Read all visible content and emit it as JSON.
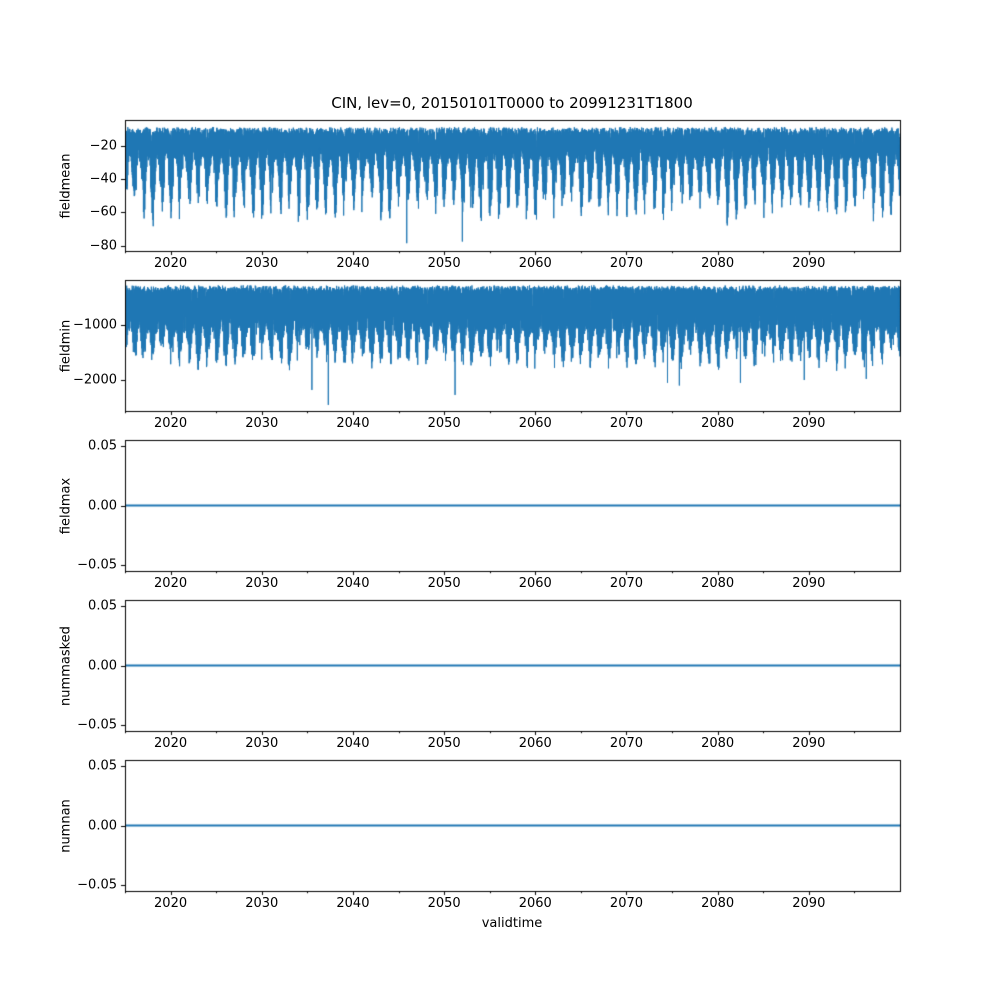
{
  "chart_data": {
    "type": "line",
    "title": "CIN, lev=0, 20150101T0000 to 20991231T1800",
    "xlabel": "validtime",
    "line_color": "#1f77b4",
    "background_color": "#ffffff",
    "axis_color": "#000000",
    "grid": false,
    "legend": false,
    "x_range": [
      2015,
      2100
    ],
    "x_ticks": {
      "major_values": [
        2020,
        2030,
        2040,
        2050,
        2060,
        2070,
        2080,
        2090
      ],
      "major_labels": [
        "2020",
        "2030",
        "2040",
        "2050",
        "2060",
        "2070",
        "2080",
        "2090"
      ],
      "minor_values": [
        2015,
        2025,
        2035,
        2045,
        2055,
        2065,
        2075,
        2085,
        2095
      ]
    },
    "subplots": [
      {
        "ylabel": "fieldmean",
        "ylim": [
          -83.2,
          -4.3
        ],
        "yticks": [
          {
            "value": -20,
            "label": "−20"
          },
          {
            "value": -40,
            "label": "−40"
          },
          {
            "value": -60,
            "label": "−60"
          },
          {
            "value": -80,
            "label": "−80"
          }
        ],
        "series": {
          "kind": "seasonal-noise",
          "description": "6-hourly CIN field mean, annual cycle: peaks near -9, seasonal dips to -45..-68",
          "seed": 7,
          "top": -8.5,
          "top_jitter": 4,
          "base_depth": 17,
          "seasonal_depth": 36,
          "sharpness": 1.3,
          "phase": 0.45,
          "year_factor_min": 0.7,
          "year_factor_max": 1.15,
          "spikes": [
            {
              "x": 2045.9,
              "y": -78.5
            },
            {
              "x": 2052.0,
              "y": -77.5
            }
          ]
        }
      },
      {
        "ylabel": "fieldmin",
        "ylim": [
          -2560,
          -195
        ],
        "yticks": [
          {
            "value": -1000,
            "label": "−1000"
          },
          {
            "value": -2000,
            "label": "−2000"
          }
        ],
        "series": {
          "kind": "seasonal-noise",
          "description": "6-hourly CIN field minimum, annual cycle: peaks near -300, seasonal dips to -1400..-2000",
          "seed": 21,
          "top": -290,
          "top_jitter": 90,
          "base_depth": 780,
          "seasonal_depth": 620,
          "sharpness": 1.1,
          "phase": 0.45,
          "year_factor_min": 0.65,
          "year_factor_max": 1.25,
          "spikes": [
            {
              "x": 2035.5,
              "y": -2180
            },
            {
              "x": 2037.3,
              "y": -2450
            },
            {
              "x": 2051.2,
              "y": -2270
            },
            {
              "x": 2074.5,
              "y": -2050
            },
            {
              "x": 2075.8,
              "y": -2100
            },
            {
              "x": 2082.5,
              "y": -2050
            },
            {
              "x": 2089.5,
              "y": -2000
            },
            {
              "x": 2096.3,
              "y": -1980
            }
          ]
        }
      },
      {
        "ylabel": "fieldmax",
        "ylim": [
          -0.055,
          0.055
        ],
        "yticks": [
          {
            "value": 0.05,
            "label": "0.05"
          },
          {
            "value": 0,
            "label": "0.00"
          },
          {
            "value": -0.05,
            "label": "−0.05"
          }
        ],
        "series": {
          "kind": "constant",
          "value": 0
        }
      },
      {
        "ylabel": "nummasked",
        "ylim": [
          -0.055,
          0.055
        ],
        "yticks": [
          {
            "value": 0.05,
            "label": "0.05"
          },
          {
            "value": 0,
            "label": "0.00"
          },
          {
            "value": -0.05,
            "label": "−0.05"
          }
        ],
        "series": {
          "kind": "constant",
          "value": 0
        }
      },
      {
        "ylabel": "numnan",
        "ylim": [
          -0.055,
          0.055
        ],
        "yticks": [
          {
            "value": 0.05,
            "label": "0.05"
          },
          {
            "value": 0,
            "label": "0.00"
          },
          {
            "value": -0.05,
            "label": "−0.05"
          }
        ],
        "series": {
          "kind": "constant",
          "value": 0
        }
      }
    ]
  }
}
